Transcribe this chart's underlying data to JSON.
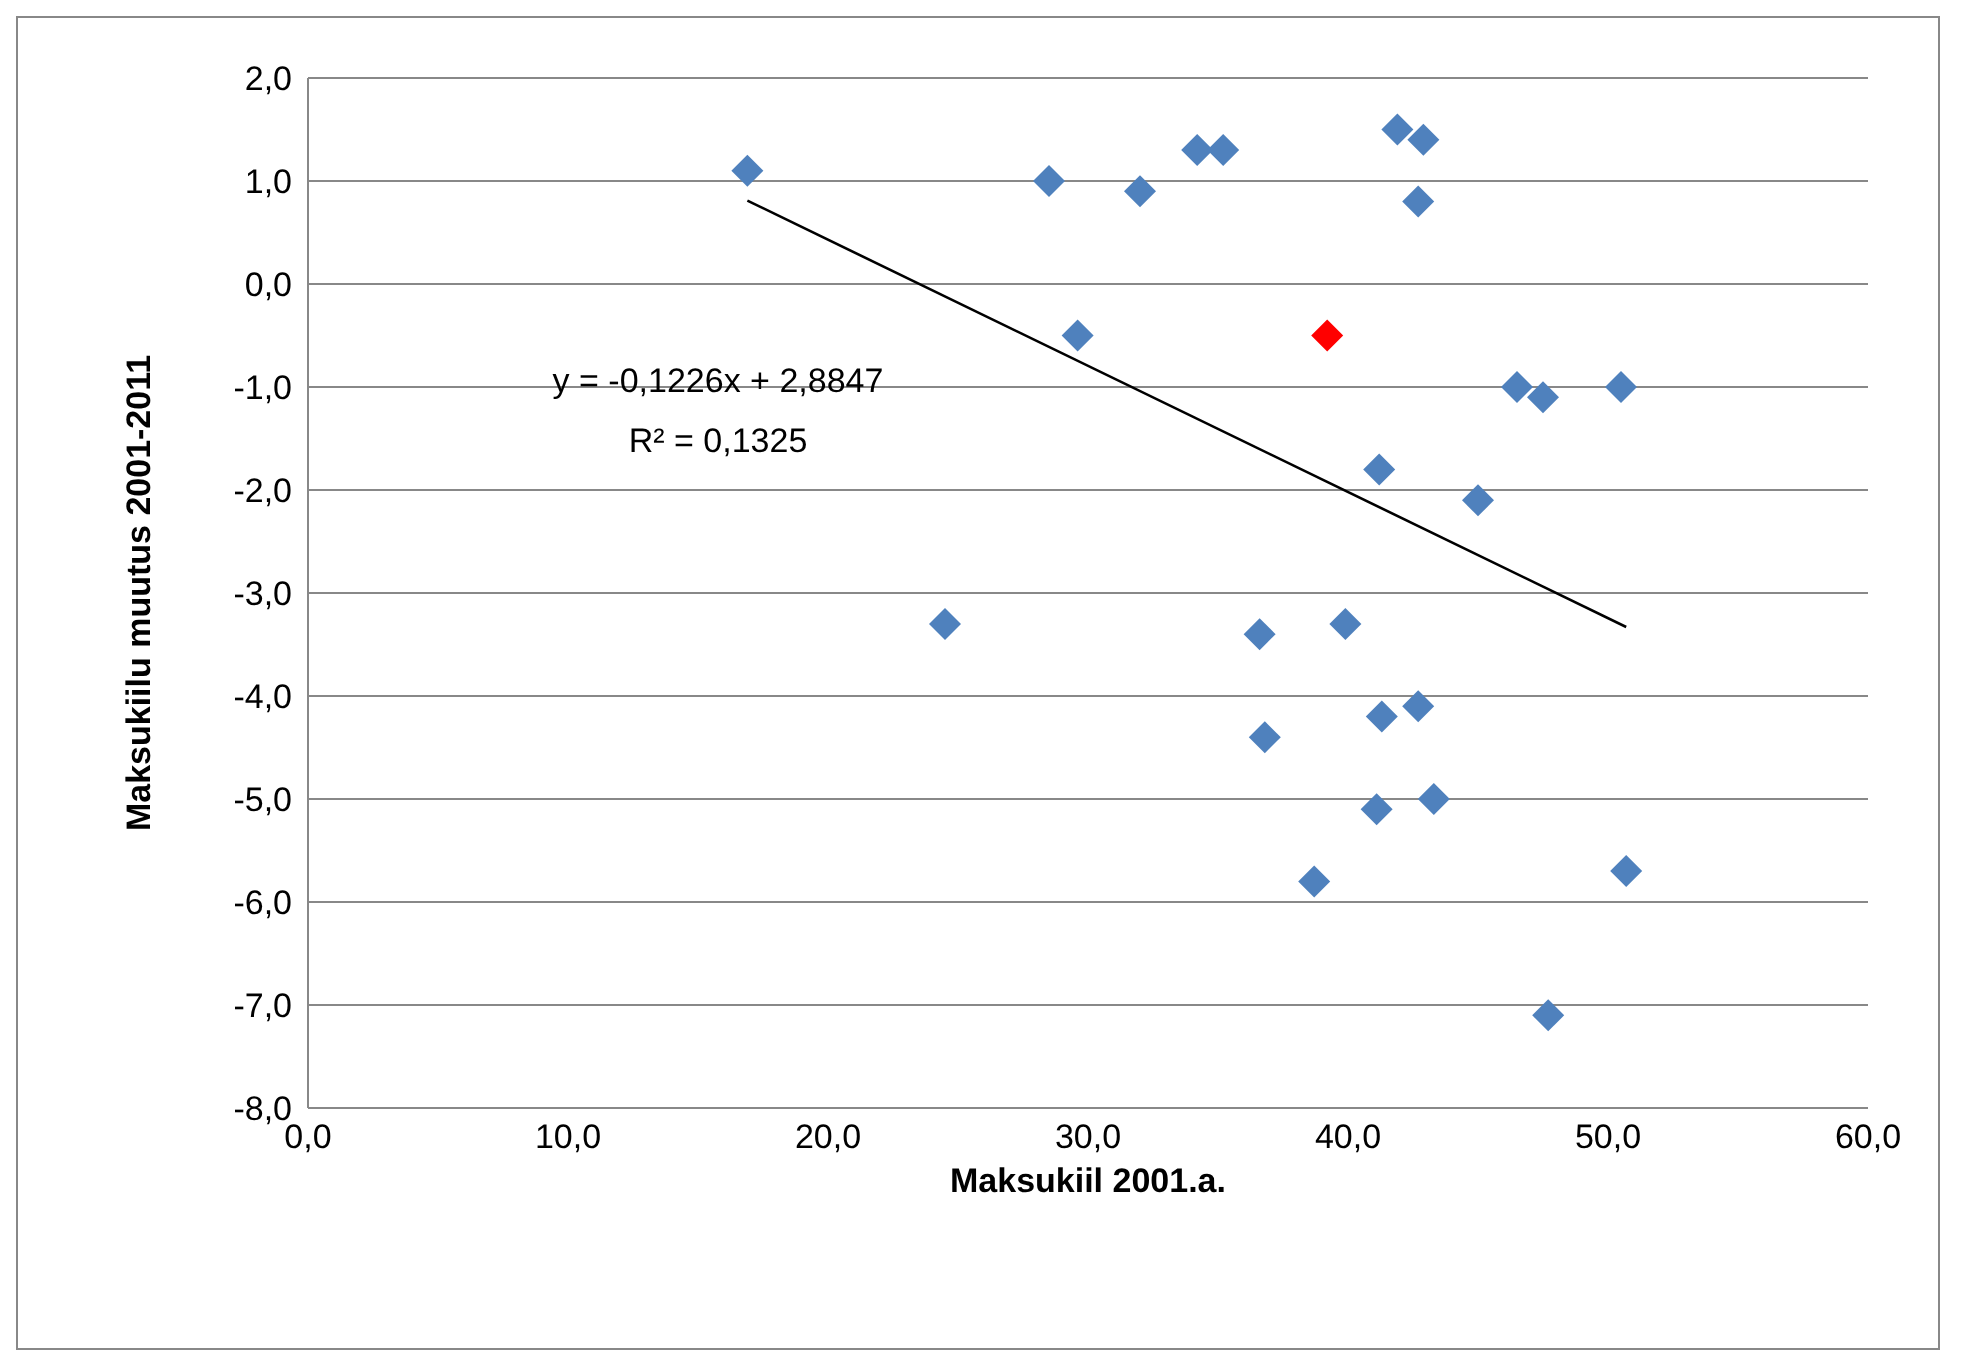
{
  "chart_data": {
    "type": "scatter",
    "xlabel": "Maksukiil 2001.a.",
    "ylabel": "Maksukiilu muutus 2001-2011",
    "xlim": [
      0,
      60
    ],
    "xticks": [
      {
        "value": 0,
        "label": "0,0"
      },
      {
        "value": 10,
        "label": "10,0"
      },
      {
        "value": 20,
        "label": "20,0"
      },
      {
        "value": 30,
        "label": "30,0"
      },
      {
        "value": 40,
        "label": "40,0"
      },
      {
        "value": 50,
        "label": "50,0"
      },
      {
        "value": 60,
        "label": "60,0"
      }
    ],
    "ylim": [
      -8,
      2
    ],
    "yticks": [
      {
        "value": -8,
        "label": "-8,0"
      },
      {
        "value": -7,
        "label": "-7,0"
      },
      {
        "value": -6,
        "label": "-6,0"
      },
      {
        "value": -5,
        "label": "-5,0"
      },
      {
        "value": -4,
        "label": "-4,0"
      },
      {
        "value": -3,
        "label": "-3,0"
      },
      {
        "value": -2,
        "label": "-2,0"
      },
      {
        "value": -1,
        "label": "-1,0"
      },
      {
        "value": 0,
        "label": "0,0"
      },
      {
        "value": 1,
        "label": "1,0"
      },
      {
        "value": 2,
        "label": "2,0"
      }
    ],
    "grid": "y",
    "legend": false,
    "marker": "diamond",
    "series": [
      {
        "color": "#4f81bd",
        "x": [
          16.9,
          28.5,
          32.0,
          34.2,
          35.2,
          41.9,
          42.9,
          42.7,
          29.6,
          46.5,
          47.5,
          50.5,
          41.2,
          45.0,
          24.5,
          36.6,
          39.9,
          36.8,
          41.3,
          42.7,
          41.1,
          43.3,
          38.7,
          50.7,
          47.7
        ],
        "values": [
          1.1,
          1.0,
          0.9,
          1.3,
          1.3,
          1.5,
          1.4,
          0.8,
          -0.5,
          -1.0,
          -1.1,
          -1.0,
          -1.8,
          -2.1,
          -3.3,
          -3.4,
          -3.3,
          -4.4,
          -4.2,
          -4.1,
          -5.1,
          -5.0,
          -5.8,
          -5.7,
          -7.1
        ]
      },
      {
        "color": "#ff0000",
        "x": [
          39.2
        ],
        "values": [
          -0.5
        ]
      },
      {
        "type": "line",
        "color": "#000000",
        "marker": "none",
        "x": [
          16.9,
          50.7
        ],
        "values": [
          0.81,
          -3.33
        ]
      }
    ],
    "annotations": [
      "y = -0,1226x + 2,8847",
      "R² = 0,1325"
    ]
  }
}
